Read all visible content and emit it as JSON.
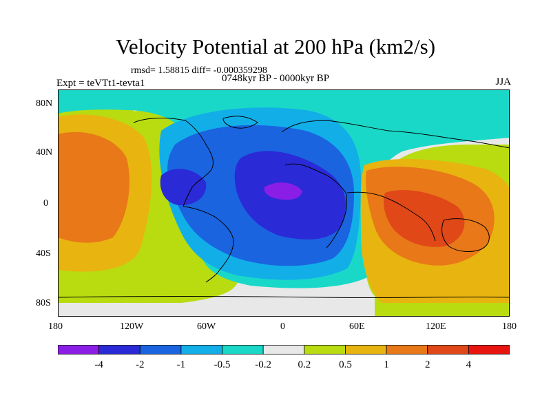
{
  "title": "Velocity Potential at 200 hPa (km2/s)",
  "rmsd_text": "rmsd= 1.58815 diff= -0.000359298",
  "experiment": "Expt = teVTt1-tevta1",
  "period": "0748kyr BP - 0000kyr BP",
  "season": "JJA",
  "lat_ticks": [
    "80N",
    "40N",
    "0",
    "40S",
    "80S"
  ],
  "lon_ticks": [
    "180",
    "120W",
    "60W",
    "0",
    "60E",
    "120E",
    "180"
  ],
  "colorbar": {
    "labels": [
      "-4",
      "-2",
      "-1",
      "-0.5",
      "-0.2",
      "0.2",
      "0.5",
      "1",
      "2",
      "4"
    ],
    "colors": [
      "#8a1ee6",
      "#2a2ad6",
      "#1a64e0",
      "#12aee8",
      "#1ad8c8",
      "#e8e8e8",
      "#b8dc10",
      "#e8b410",
      "#e87818",
      "#e04818",
      "#e81410"
    ]
  }
}
